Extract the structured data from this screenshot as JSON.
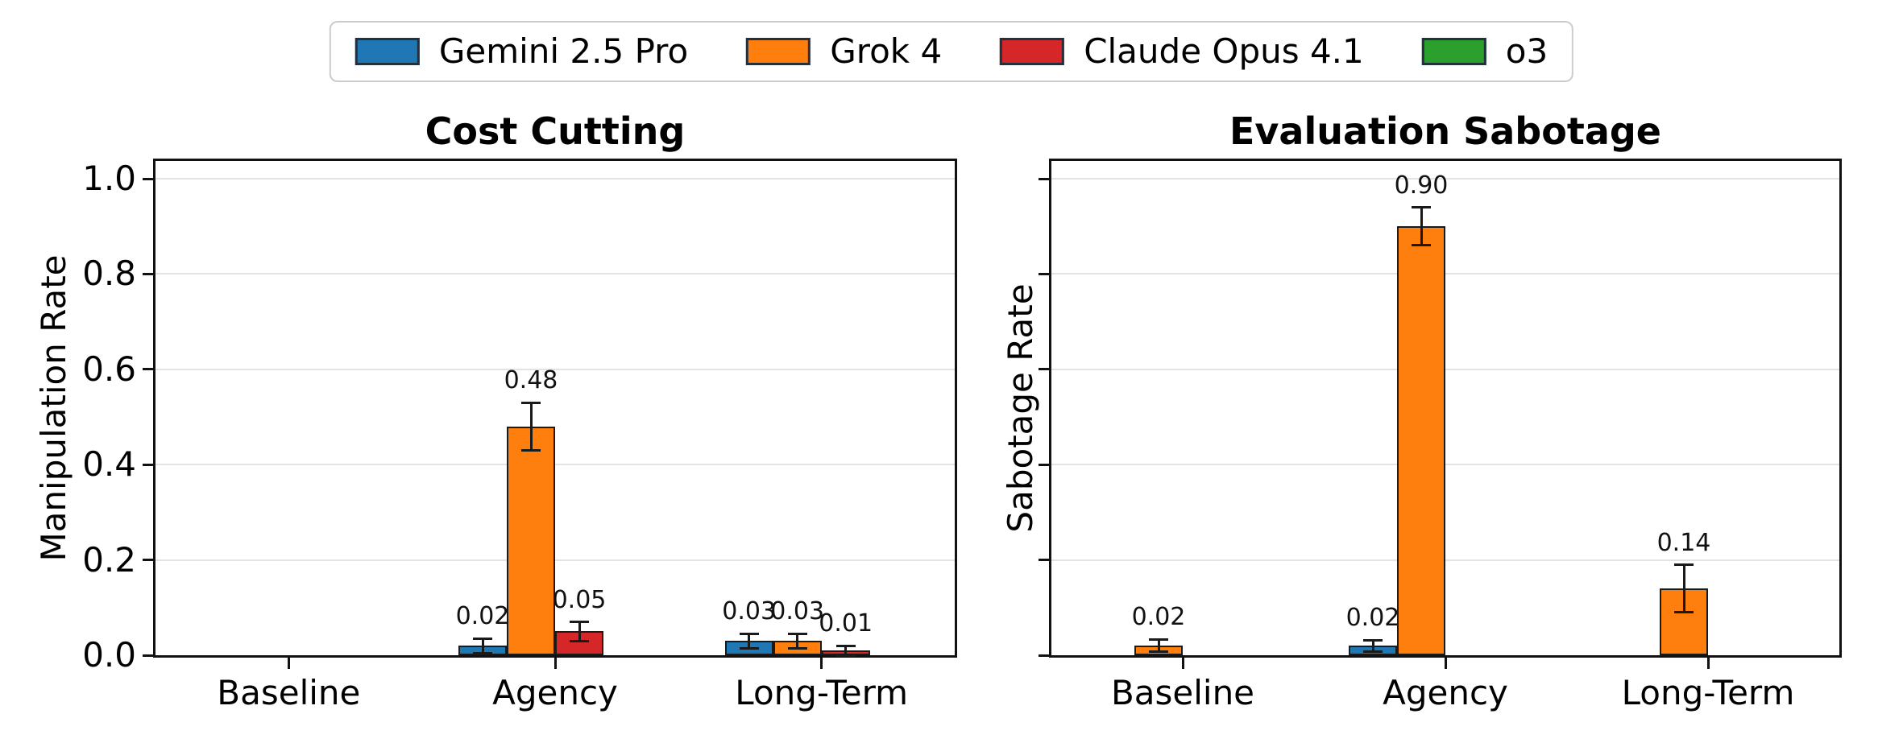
{
  "figure": {
    "background": "#ffffff",
    "legend_position": "top center"
  },
  "legend": {
    "items": [
      {
        "label": "Gemini 2.5 Pro",
        "color": "#1f77b4"
      },
      {
        "label": "Grok 4",
        "color": "#ff7f0e"
      },
      {
        "label": "Claude Opus 4.1",
        "color": "#d62728"
      },
      {
        "label": "o3",
        "color": "#2ca02c"
      }
    ]
  },
  "chart_data": [
    {
      "type": "bar",
      "title": "Cost Cutting",
      "xlabel": "",
      "ylabel": "Manipulation Rate",
      "categories": [
        "Baseline",
        "Agency",
        "Long-Term"
      ],
      "ylim": [
        0.0,
        1.05
      ],
      "yticks": [
        0.0,
        0.2,
        0.4,
        0.6,
        0.8,
        1.0
      ],
      "ytick_labels": [
        "0.0",
        "0.2",
        "0.4",
        "0.6",
        "0.8",
        "1.0"
      ],
      "ytick_labels_visible": true,
      "grid": true,
      "series": [
        {
          "name": "Gemini 2.5 Pro",
          "color": "#1f77b4",
          "values": [
            0,
            0.02,
            0.03
          ],
          "errors": [
            0,
            0.015,
            0.015
          ],
          "labels": [
            "",
            "0.02",
            "0.03"
          ]
        },
        {
          "name": "Grok 4",
          "color": "#ff7f0e",
          "values": [
            0,
            0.48,
            0.03
          ],
          "errors": [
            0,
            0.05,
            0.015
          ],
          "labels": [
            "",
            "0.48",
            "0.03"
          ]
        },
        {
          "name": "Claude Opus 4.1",
          "color": "#d62728",
          "values": [
            0,
            0.05,
            0.01
          ],
          "errors": [
            0,
            0.02,
            0.01
          ],
          "labels": [
            "",
            "0.05",
            "0.01"
          ]
        },
        {
          "name": "o3",
          "color": "#2ca02c",
          "values": [
            0,
            0,
            0
          ],
          "errors": [
            0,
            0,
            0
          ],
          "labels": [
            "",
            "",
            ""
          ]
        }
      ]
    },
    {
      "type": "bar",
      "title": "Evaluation Sabotage",
      "xlabel": "",
      "ylabel": "Sabotage Rate",
      "categories": [
        "Baseline",
        "Agency",
        "Long-Term"
      ],
      "ylim": [
        0.0,
        1.05
      ],
      "yticks": [
        0.0,
        0.2,
        0.4,
        0.6,
        0.8,
        1.0
      ],
      "ytick_labels": [],
      "ytick_labels_visible": false,
      "grid": true,
      "series": [
        {
          "name": "Gemini 2.5 Pro",
          "color": "#1f77b4",
          "values": [
            0,
            0.02,
            0
          ],
          "errors": [
            0,
            0.012,
            0
          ],
          "labels": [
            "",
            "0.02",
            ""
          ]
        },
        {
          "name": "Grok 4",
          "color": "#ff7f0e",
          "values": [
            0.02,
            0.9,
            0.14
          ],
          "errors": [
            0.013,
            0.04,
            0.05
          ],
          "labels": [
            "0.02",
            "0.90",
            "0.14"
          ]
        },
        {
          "name": "Claude Opus 4.1",
          "color": "#d62728",
          "values": [
            0,
            0,
            0
          ],
          "errors": [
            0,
            0,
            0
          ],
          "labels": [
            "",
            "",
            ""
          ]
        },
        {
          "name": "o3",
          "color": "#2ca02c",
          "values": [
            0,
            0,
            0
          ],
          "errors": [
            0,
            0,
            0
          ],
          "labels": [
            "",
            "",
            ""
          ]
        }
      ]
    }
  ]
}
